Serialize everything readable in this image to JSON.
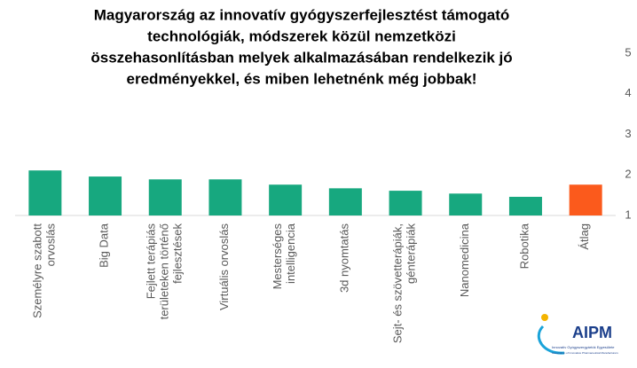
{
  "chart_data": {
    "type": "bar",
    "title": [
      "Magyarország az innovatív gyógyszerfejlesztést támogató",
      "technológiák, módszerek közül nemzetközi",
      "összehasonlításban melyek alkalmazásában rendelkezik jó",
      "eredményekkel, és miben lehetnénk még jobbak!"
    ],
    "categories": [
      [
        "Személyre szabott",
        "orvoslás"
      ],
      [
        "Big Data"
      ],
      [
        "Fejlett terápiás",
        "területeken történő",
        "fejlesztések"
      ],
      [
        "Virtuális orvoslás"
      ],
      [
        "Mesterséges",
        "intelligencia"
      ],
      [
        "3d nyomtatás"
      ],
      [
        "Sejt- és szövetterápiák,",
        "génterápiák"
      ],
      [
        "Nanomedicina"
      ],
      [
        "Robotika"
      ],
      [
        "Átlag"
      ]
    ],
    "values": [
      2.11,
      1.96,
      1.89,
      1.89,
      1.76,
      1.67,
      1.61,
      1.54,
      1.46,
      1.76
    ],
    "colors": [
      "#17a87f",
      "#17a87f",
      "#17a87f",
      "#17a87f",
      "#17a87f",
      "#17a87f",
      "#17a87f",
      "#17a87f",
      "#17a87f",
      "#fb5a1c"
    ],
    "ylim": [
      1,
      5
    ],
    "yticks": [
      1,
      2,
      3,
      4,
      5
    ],
    "grid": false,
    "y_axis_side": "right"
  },
  "logo": {
    "name": "AIPM",
    "line1": "Innovatív Gyógyszergyártók Egyesülete",
    "line2": "Association of Innovative Pharmaceutical Manufacturers"
  }
}
